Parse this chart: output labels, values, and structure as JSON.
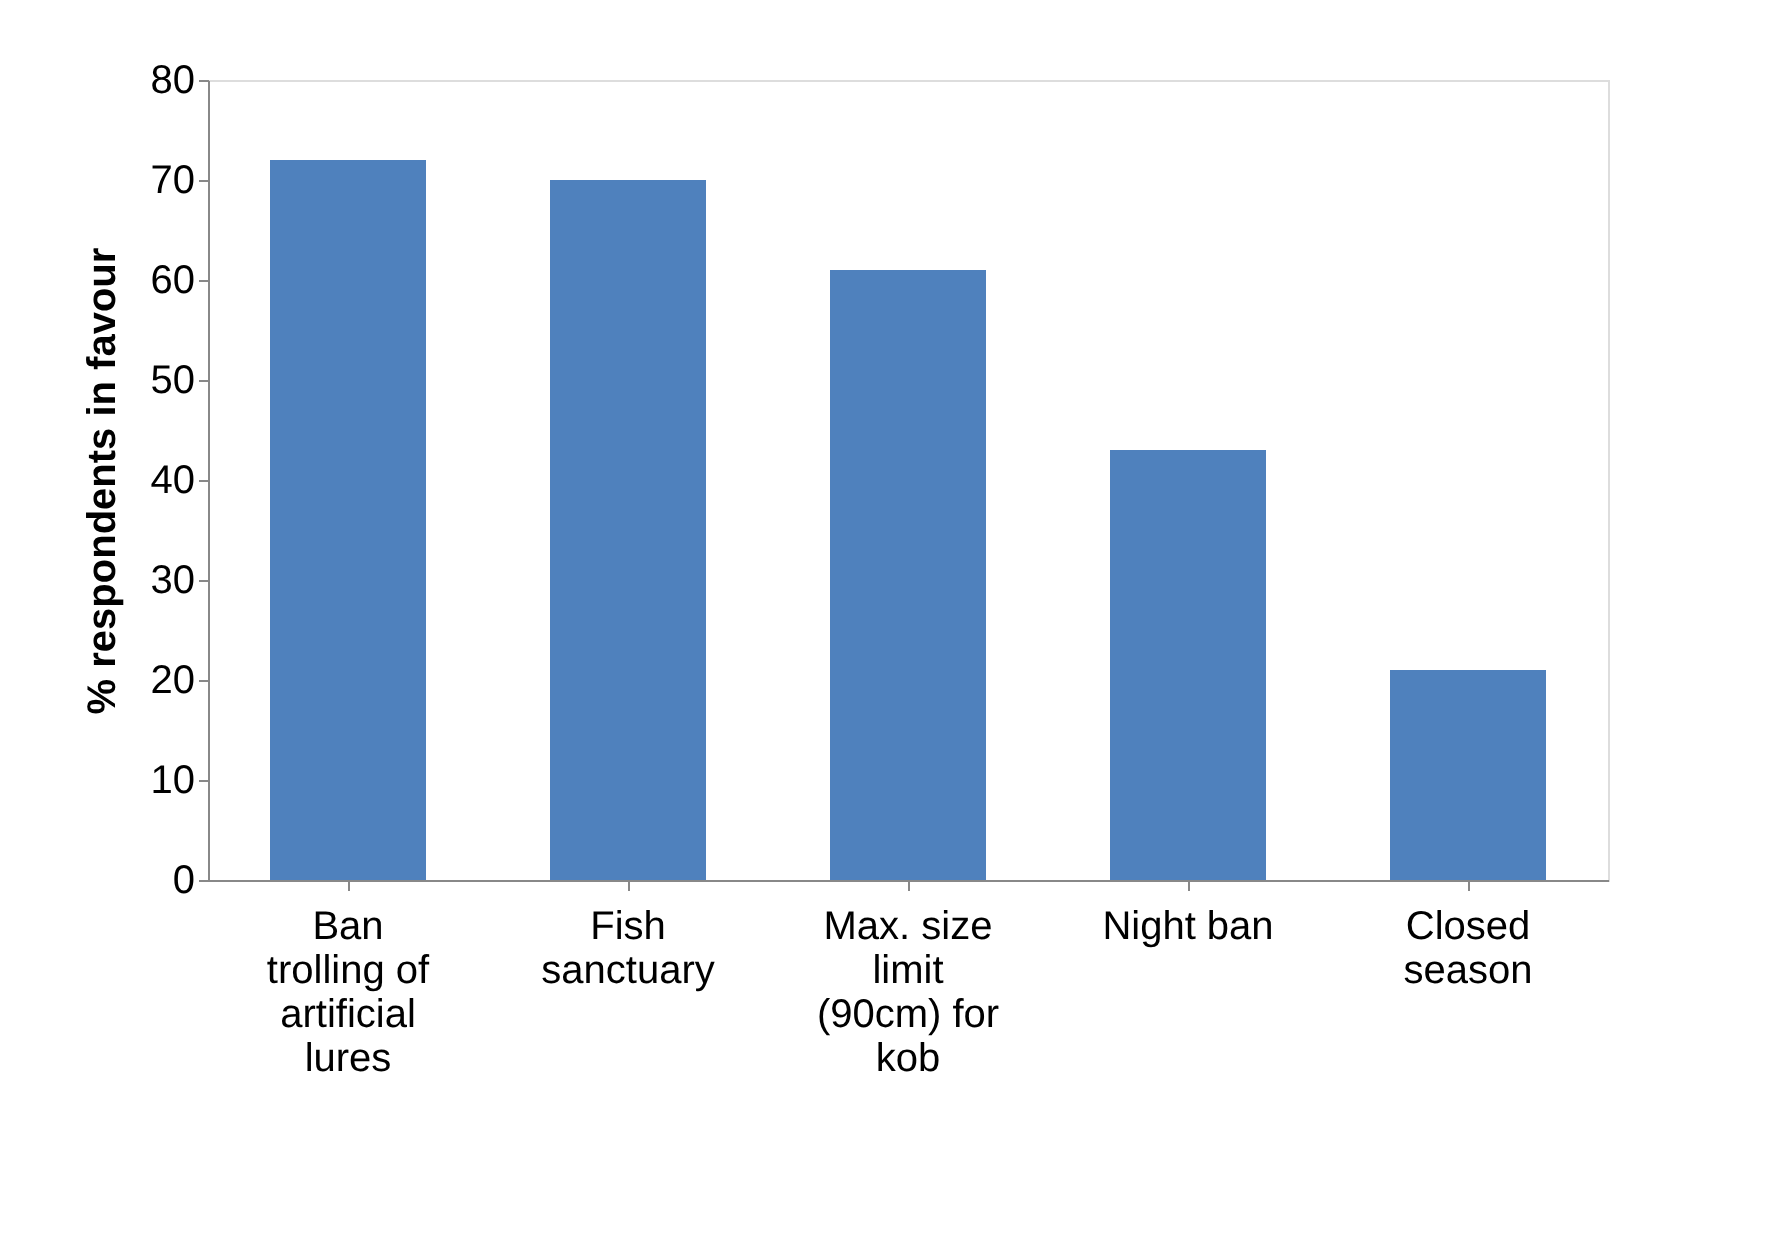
{
  "chart_data": {
    "type": "bar",
    "ylabel": "% respondents in favour",
    "categories": [
      "Ban trolling of artificial lures",
      "Fish sanctuary",
      "Max. size limit (90cm) for kob",
      "Night ban",
      "Closed season"
    ],
    "values": [
      72,
      70,
      61,
      43,
      21
    ],
    "color": "#4f81bd",
    "ylim": [
      0,
      80
    ],
    "yticks": [
      0,
      10,
      20,
      30,
      40,
      50,
      60,
      70,
      80
    ],
    "grid": false
  }
}
